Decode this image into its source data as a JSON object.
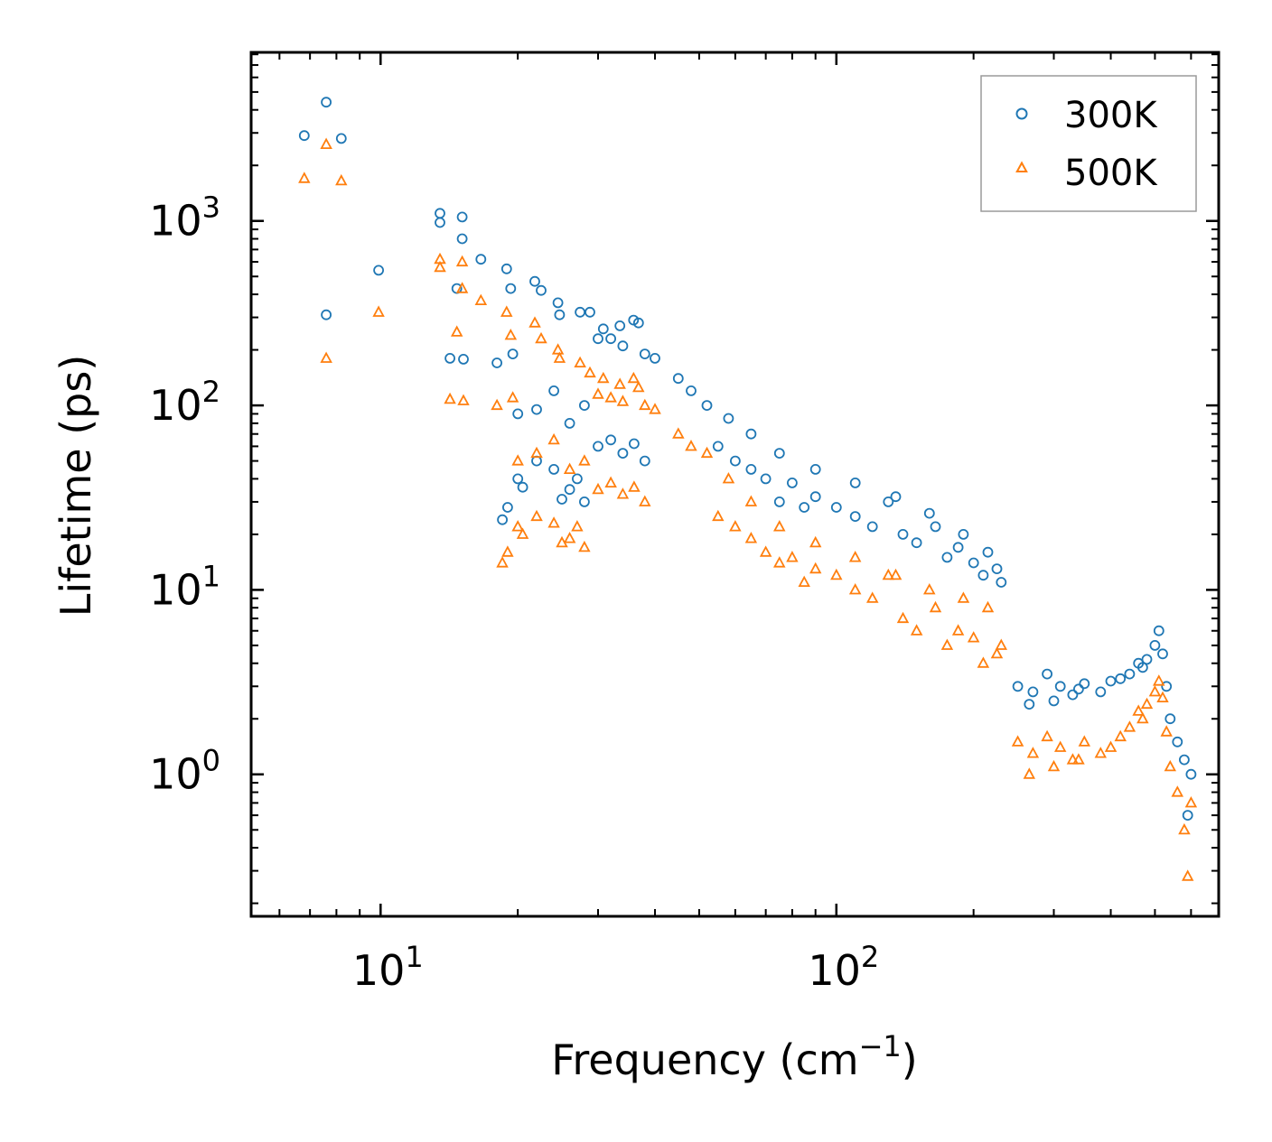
{
  "chart_data": {
    "type": "scatter",
    "title": "",
    "xlabel": {
      "base": "Frequency (cm",
      "exp": "−1",
      "suffix": ")"
    },
    "ylabel": "Lifetime (ps)",
    "xscale": "log",
    "yscale": "log",
    "xlim": [
      5.2,
      690
    ],
    "ylim": [
      0.17,
      8200
    ],
    "x_ticks": [
      {
        "value": 10,
        "base": "10",
        "exp": "1"
      },
      {
        "value": 100,
        "base": "10",
        "exp": "2"
      }
    ],
    "y_ticks": [
      {
        "value": 1,
        "base": "10",
        "exp": "0"
      },
      {
        "value": 10,
        "base": "10",
        "exp": "1"
      },
      {
        "value": 100,
        "base": "10",
        "exp": "2"
      },
      {
        "value": 1000,
        "base": "10",
        "exp": "3"
      }
    ],
    "legend_position": "top-right",
    "series": [
      {
        "name": "300K",
        "marker": "circle",
        "color": "#1f77b4",
        "points": [
          [
            6.8,
            2900
          ],
          [
            7.6,
            4400
          ],
          [
            8.2,
            2800
          ],
          [
            7.6,
            310
          ],
          [
            9.9,
            540
          ],
          [
            13.5,
            1100
          ],
          [
            13.5,
            980
          ],
          [
            15.1,
            1050
          ],
          [
            15.1,
            800
          ],
          [
            16.6,
            620
          ],
          [
            14.7,
            430
          ],
          [
            14.2,
            180
          ],
          [
            15.2,
            178
          ],
          [
            18.9,
            550
          ],
          [
            19.3,
            430
          ],
          [
            21.8,
            470
          ],
          [
            22.5,
            420
          ],
          [
            24.5,
            360
          ],
          [
            24.7,
            310
          ],
          [
            27.4,
            320
          ],
          [
            28.8,
            320
          ],
          [
            30.8,
            260
          ],
          [
            33.5,
            270
          ],
          [
            35.9,
            290
          ],
          [
            36.8,
            280
          ],
          [
            30,
            230
          ],
          [
            32,
            230
          ],
          [
            34,
            210
          ],
          [
            38,
            190
          ],
          [
            40,
            180
          ],
          [
            45,
            140
          ],
          [
            48,
            120
          ],
          [
            52,
            100
          ],
          [
            58,
            85
          ],
          [
            65,
            70
          ],
          [
            75,
            55
          ],
          [
            90,
            45
          ],
          [
            110,
            38
          ],
          [
            135,
            32
          ],
          [
            160,
            26
          ],
          [
            190,
            20
          ],
          [
            215,
            16
          ],
          [
            230,
            11
          ],
          [
            18,
            170
          ],
          [
            19.5,
            190
          ],
          [
            20,
            90
          ],
          [
            22,
            95
          ],
          [
            24,
            120
          ],
          [
            26,
            80
          ],
          [
            28,
            100
          ],
          [
            30,
            60
          ],
          [
            32,
            65
          ],
          [
            34,
            55
          ],
          [
            36,
            62
          ],
          [
            38,
            50
          ],
          [
            20,
            40
          ],
          [
            22,
            50
          ],
          [
            24,
            45
          ],
          [
            26,
            35
          ],
          [
            28,
            30
          ],
          [
            18.5,
            24
          ],
          [
            19,
            28
          ],
          [
            20.5,
            36
          ],
          [
            25,
            31
          ],
          [
            27,
            40
          ],
          [
            55,
            60
          ],
          [
            60,
            50
          ],
          [
            65,
            45
          ],
          [
            70,
            40
          ],
          [
            75,
            30
          ],
          [
            80,
            38
          ],
          [
            85,
            28
          ],
          [
            90,
            32
          ],
          [
            100,
            28
          ],
          [
            110,
            25
          ],
          [
            120,
            22
          ],
          [
            130,
            30
          ],
          [
            140,
            20
          ],
          [
            150,
            18
          ],
          [
            165,
            22
          ],
          [
            175,
            15
          ],
          [
            185,
            17
          ],
          [
            200,
            14
          ],
          [
            210,
            12
          ],
          [
            225,
            13
          ],
          [
            250,
            3.0
          ],
          [
            270,
            2.8
          ],
          [
            290,
            3.5
          ],
          [
            310,
            3.0
          ],
          [
            330,
            2.7
          ],
          [
            350,
            3.1
          ],
          [
            380,
            2.8
          ],
          [
            420,
            3.3
          ],
          [
            440,
            3.5
          ],
          [
            460,
            4.0
          ],
          [
            480,
            4.2
          ],
          [
            510,
            6.0
          ],
          [
            520,
            4.5
          ],
          [
            540,
            2.0
          ],
          [
            560,
            1.5
          ],
          [
            580,
            1.2
          ],
          [
            590,
            0.6
          ],
          [
            600,
            1.0
          ],
          [
            265,
            2.4
          ],
          [
            300,
            2.5
          ],
          [
            340,
            2.9
          ],
          [
            400,
            3.2
          ],
          [
            470,
            3.8
          ],
          [
            500,
            5.0
          ],
          [
            530,
            3.0
          ]
        ]
      },
      {
        "name": "500K",
        "marker": "triangle",
        "color": "#ff7f0e",
        "points": [
          [
            6.8,
            1700
          ],
          [
            7.6,
            2600
          ],
          [
            8.2,
            1650
          ],
          [
            7.6,
            180
          ],
          [
            9.9,
            320
          ],
          [
            13.5,
            620
          ],
          [
            13.5,
            560
          ],
          [
            15.1,
            600
          ],
          [
            15.1,
            430
          ],
          [
            16.6,
            370
          ],
          [
            14.7,
            250
          ],
          [
            14.2,
            108
          ],
          [
            15.2,
            106
          ],
          [
            18.9,
            320
          ],
          [
            19.3,
            240
          ],
          [
            21.8,
            280
          ],
          [
            22.5,
            230
          ],
          [
            24.5,
            200
          ],
          [
            24.7,
            180
          ],
          [
            27.4,
            170
          ],
          [
            28.8,
            150
          ],
          [
            30.8,
            140
          ],
          [
            33.5,
            130
          ],
          [
            35.9,
            140
          ],
          [
            36.8,
            125
          ],
          [
            30,
            115
          ],
          [
            32,
            110
          ],
          [
            34,
            105
          ],
          [
            38,
            100
          ],
          [
            40,
            95
          ],
          [
            45,
            70
          ],
          [
            48,
            60
          ],
          [
            52,
            55
          ],
          [
            58,
            40
          ],
          [
            65,
            30
          ],
          [
            75,
            22
          ],
          [
            90,
            18
          ],
          [
            110,
            15
          ],
          [
            135,
            12
          ],
          [
            160,
            10
          ],
          [
            190,
            9
          ],
          [
            215,
            8
          ],
          [
            230,
            5
          ],
          [
            18,
            100
          ],
          [
            19.5,
            110
          ],
          [
            20,
            50
          ],
          [
            22,
            55
          ],
          [
            24,
            65
          ],
          [
            26,
            45
          ],
          [
            28,
            50
          ],
          [
            30,
            35
          ],
          [
            32,
            38
          ],
          [
            34,
            33
          ],
          [
            36,
            36
          ],
          [
            38,
            30
          ],
          [
            20,
            22
          ],
          [
            22,
            25
          ],
          [
            24,
            23
          ],
          [
            26,
            19
          ],
          [
            28,
            17
          ],
          [
            18.5,
            14
          ],
          [
            19,
            16
          ],
          [
            20.5,
            20
          ],
          [
            25,
            18
          ],
          [
            27,
            22
          ],
          [
            55,
            25
          ],
          [
            60,
            22
          ],
          [
            65,
            19
          ],
          [
            70,
            16
          ],
          [
            75,
            14
          ],
          [
            80,
            15
          ],
          [
            85,
            11
          ],
          [
            90,
            13
          ],
          [
            100,
            12
          ],
          [
            110,
            10
          ],
          [
            120,
            9
          ],
          [
            130,
            12
          ],
          [
            140,
            7
          ],
          [
            150,
            6
          ],
          [
            165,
            8
          ],
          [
            175,
            5
          ],
          [
            185,
            6
          ],
          [
            200,
            5.5
          ],
          [
            210,
            4
          ],
          [
            225,
            4.5
          ],
          [
            250,
            1.5
          ],
          [
            270,
            1.3
          ],
          [
            290,
            1.6
          ],
          [
            310,
            1.4
          ],
          [
            330,
            1.2
          ],
          [
            350,
            1.5
          ],
          [
            380,
            1.3
          ],
          [
            420,
            1.6
          ],
          [
            440,
            1.8
          ],
          [
            460,
            2.2
          ],
          [
            480,
            2.4
          ],
          [
            510,
            3.2
          ],
          [
            520,
            2.6
          ],
          [
            540,
            1.1
          ],
          [
            560,
            0.8
          ],
          [
            580,
            0.5
          ],
          [
            590,
            0.28
          ],
          [
            600,
            0.7
          ],
          [
            265,
            1.0
          ],
          [
            300,
            1.1
          ],
          [
            340,
            1.2
          ],
          [
            400,
            1.4
          ],
          [
            470,
            2.0
          ],
          [
            500,
            2.8
          ],
          [
            530,
            1.7
          ]
        ]
      }
    ]
  }
}
